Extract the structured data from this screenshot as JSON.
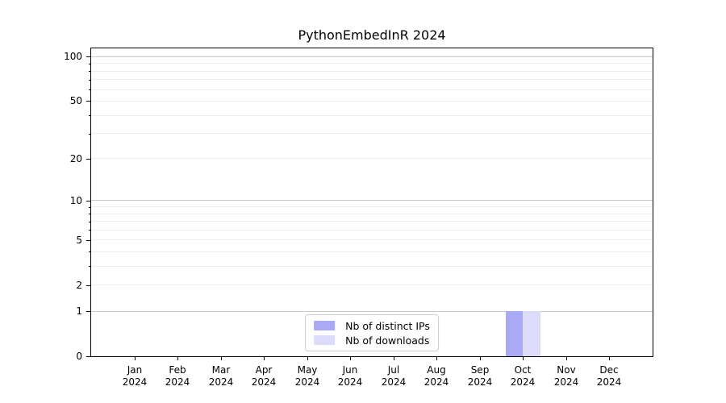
{
  "page": {
    "background": "#ffffff"
  },
  "chart_data": {
    "type": "bar",
    "title": "PythonEmbedInR 2024",
    "categories": [
      "Jan",
      "Feb",
      "Mar",
      "Apr",
      "May",
      "Jun",
      "Jul",
      "Aug",
      "Sep",
      "Oct",
      "Nov",
      "Dec"
    ],
    "year": "2024",
    "series": [
      {
        "name": "Nb of distinct IPs",
        "color": "#a9a9f5",
        "values": [
          0,
          0,
          0,
          0,
          0,
          0,
          0,
          0,
          0,
          1,
          0,
          0
        ]
      },
      {
        "name": "Nb of downloads",
        "color": "#dcdcfa",
        "values": [
          0,
          0,
          0,
          0,
          0,
          0,
          0,
          0,
          0,
          1,
          0,
          0
        ]
      }
    ],
    "xlabel": "",
    "ylabel": "",
    "yscale": "log1p",
    "ylim": [
      0,
      114
    ],
    "y_ticks": [
      0,
      1,
      2,
      5,
      10,
      20,
      50,
      100
    ],
    "grid": {
      "major_values": [
        1,
        10,
        100
      ],
      "minor_values": [
        2,
        3,
        4,
        5,
        6,
        7,
        8,
        9,
        20,
        30,
        40,
        50,
        60,
        70,
        80,
        90
      ],
      "major_color": "#c8c8c8",
      "minor_color": "#ededed"
    },
    "bar_width_fraction": 0.4,
    "legend_position": "lower center",
    "axis_color": "#000000"
  }
}
